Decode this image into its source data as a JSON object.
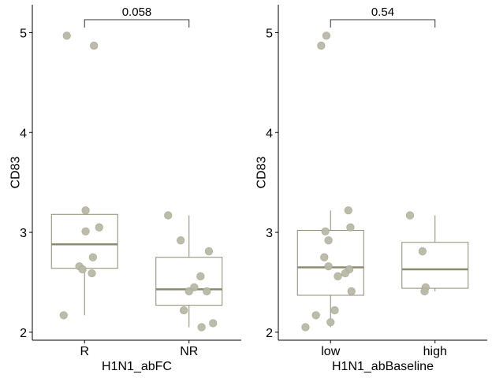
{
  "colors": {
    "box_stroke": "#8c8a6e",
    "median": "#8c8a6e",
    "point_fill": "#b9b8a5",
    "point_stroke": "#a7a692",
    "axis": "#000000",
    "bracket": "#333333"
  },
  "chart_data": [
    {
      "type": "box",
      "xlabel": "H1N1_abFC",
      "ylabel": "CD83",
      "ylim": [
        1.92,
        5.28
      ],
      "yticks": [
        2,
        3,
        4,
        5
      ],
      "categories": [
        "R",
        "NR"
      ],
      "boxes": [
        {
          "category": "R",
          "whisker_low": 2.17,
          "q1": 2.64,
          "median": 2.88,
          "q3": 3.18,
          "whisker_high": 3.22
        },
        {
          "category": "NR",
          "whisker_low": 2.05,
          "q1": 2.27,
          "median": 2.43,
          "q3": 2.75,
          "whisker_high": 3.17
        }
      ],
      "points": [
        {
          "category": "R",
          "jitter": -0.17,
          "y": 4.97
        },
        {
          "category": "R",
          "jitter": 0.09,
          "y": 4.87
        },
        {
          "category": "R",
          "jitter": 0.01,
          "y": 3.22
        },
        {
          "category": "R",
          "jitter": 0.14,
          "y": 3.05
        },
        {
          "category": "R",
          "jitter": 0.01,
          "y": 3.01
        },
        {
          "category": "R",
          "jitter": 0.08,
          "y": 2.75
        },
        {
          "category": "R",
          "jitter": -0.05,
          "y": 2.66
        },
        {
          "category": "R",
          "jitter": -0.02,
          "y": 2.63
        },
        {
          "category": "R",
          "jitter": 0.07,
          "y": 2.59
        },
        {
          "category": "R",
          "jitter": -0.2,
          "y": 2.17
        },
        {
          "category": "NR",
          "jitter": -0.2,
          "y": 3.17
        },
        {
          "category": "NR",
          "jitter": -0.08,
          "y": 2.92
        },
        {
          "category": "NR",
          "jitter": 0.19,
          "y": 2.81
        },
        {
          "category": "NR",
          "jitter": 0.11,
          "y": 2.56
        },
        {
          "category": "NR",
          "jitter": 0.05,
          "y": 2.45
        },
        {
          "category": "NR",
          "jitter": 0.0,
          "y": 2.41
        },
        {
          "category": "NR",
          "jitter": 0.17,
          "y": 2.41
        },
        {
          "category": "NR",
          "jitter": -0.05,
          "y": 2.22
        },
        {
          "category": "NR",
          "jitter": 0.23,
          "y": 2.09
        },
        {
          "category": "NR",
          "jitter": 0.12,
          "y": 2.05
        }
      ],
      "comparison": {
        "from": "R",
        "to": "NR",
        "label": "0.058",
        "y": 5.13
      }
    },
    {
      "type": "box",
      "xlabel": "H1N1_abBaseline",
      "ylabel": "CD83",
      "ylim": [
        1.92,
        5.28
      ],
      "yticks": [
        2,
        3,
        4,
        5
      ],
      "categories": [
        "low",
        "high"
      ],
      "boxes": [
        {
          "category": "low",
          "whisker_low": 2.05,
          "q1": 2.37,
          "median": 2.65,
          "q3": 3.02,
          "whisker_high": 3.22
        },
        {
          "category": "high",
          "whisker_low": 2.41,
          "q1": 2.44,
          "median": 2.63,
          "q3": 2.9,
          "whisker_high": 3.17
        }
      ],
      "points": [
        {
          "category": "low",
          "jitter": -0.04,
          "y": 4.97
        },
        {
          "category": "low",
          "jitter": -0.09,
          "y": 4.87
        },
        {
          "category": "low",
          "jitter": 0.17,
          "y": 3.22
        },
        {
          "category": "low",
          "jitter": 0.19,
          "y": 3.05
        },
        {
          "category": "low",
          "jitter": -0.05,
          "y": 3.01
        },
        {
          "category": "low",
          "jitter": -0.02,
          "y": 2.92
        },
        {
          "category": "low",
          "jitter": -0.06,
          "y": 2.75
        },
        {
          "category": "low",
          "jitter": -0.02,
          "y": 2.66
        },
        {
          "category": "low",
          "jitter": 0.18,
          "y": 2.63
        },
        {
          "category": "low",
          "jitter": 0.14,
          "y": 2.59
        },
        {
          "category": "low",
          "jitter": 0.07,
          "y": 2.56
        },
        {
          "category": "low",
          "jitter": 0.2,
          "y": 2.41
        },
        {
          "category": "low",
          "jitter": 0.04,
          "y": 2.22
        },
        {
          "category": "low",
          "jitter": -0.14,
          "y": 2.17
        },
        {
          "category": "low",
          "jitter": 0.0,
          "y": 2.1
        },
        {
          "category": "low",
          "jitter": -0.24,
          "y": 2.05
        },
        {
          "category": "high",
          "jitter": -0.24,
          "y": 3.17
        },
        {
          "category": "high",
          "jitter": -0.12,
          "y": 2.81
        },
        {
          "category": "high",
          "jitter": -0.09,
          "y": 2.45
        },
        {
          "category": "high",
          "jitter": -0.1,
          "y": 2.41
        }
      ],
      "comparison": {
        "from": "low",
        "to": "high",
        "label": "0.54",
        "y": 5.13
      }
    }
  ]
}
